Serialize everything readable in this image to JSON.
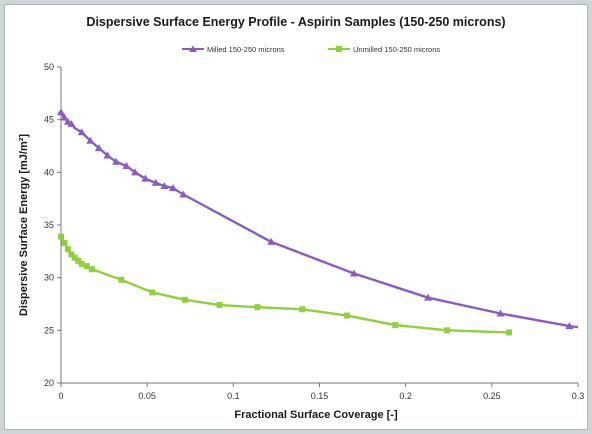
{
  "chart_data": {
    "type": "line",
    "title": "Dispersive Surface Energy Profile - Aspirin Samples (150-250 microns)",
    "xlabel": "Fractional Surface Coverage [-]",
    "ylabel": "Dispersive Surface Energy [mJ/m²]",
    "xlim": [
      0,
      0.3
    ],
    "ylim": [
      20,
      50
    ],
    "xticks": [
      "0",
      "0.05",
      "0.1",
      "0.15",
      "0.2",
      "0.25",
      "0.3"
    ],
    "yticks": [
      "20",
      "25",
      "30",
      "35",
      "40",
      "45",
      "50"
    ],
    "grid": false,
    "legend_position": "top-center",
    "series": [
      {
        "name": "Milled 150-250 microns",
        "color": "#8a5cc2",
        "marker": "triangle",
        "x": [
          0.0,
          0.001,
          0.002,
          0.003,
          0.004,
          0.006,
          0.008,
          0.012,
          0.017,
          0.022,
          0.027,
          0.032,
          0.038,
          0.043,
          0.049,
          0.055,
          0.06,
          0.065,
          0.071,
          0.122,
          0.17,
          0.213,
          0.255,
          0.295,
          0.3
        ],
        "y": [
          45.7,
          45.4,
          45.2,
          45.0,
          44.8,
          44.6,
          44.2,
          43.8,
          43.0,
          42.3,
          41.6,
          41.0,
          40.6,
          40.0,
          39.4,
          39.0,
          38.7,
          38.5,
          37.9,
          33.4,
          30.4,
          28.1,
          26.6,
          25.4,
          25.3
        ],
        "markers_at": [
          0.0,
          0.002,
          0.004,
          0.006,
          0.012,
          0.017,
          0.022,
          0.027,
          0.032,
          0.038,
          0.043,
          0.049,
          0.055,
          0.06,
          0.065,
          0.071,
          0.122,
          0.17,
          0.213,
          0.255,
          0.295
        ]
      },
      {
        "name": "Unmilled 150-250 microns",
        "color": "#8fd13a",
        "marker": "square",
        "x": [
          0.0,
          0.001,
          0.002,
          0.003,
          0.004,
          0.005,
          0.006,
          0.008,
          0.01,
          0.012,
          0.015,
          0.018,
          0.035,
          0.053,
          0.072,
          0.092,
          0.114,
          0.14,
          0.166,
          0.194,
          0.224,
          0.26
        ],
        "y": [
          33.9,
          33.6,
          33.3,
          33.0,
          32.7,
          32.4,
          32.2,
          31.9,
          31.6,
          31.3,
          31.1,
          30.8,
          29.8,
          28.6,
          27.9,
          27.4,
          27.2,
          27.0,
          26.4,
          25.5,
          25.0,
          24.8
        ],
        "markers_at": [
          0.0,
          0.002,
          0.004,
          0.006,
          0.008,
          0.01,
          0.012,
          0.015,
          0.018,
          0.035,
          0.053,
          0.072,
          0.092,
          0.114,
          0.14,
          0.166,
          0.194,
          0.224,
          0.26
        ]
      }
    ]
  }
}
